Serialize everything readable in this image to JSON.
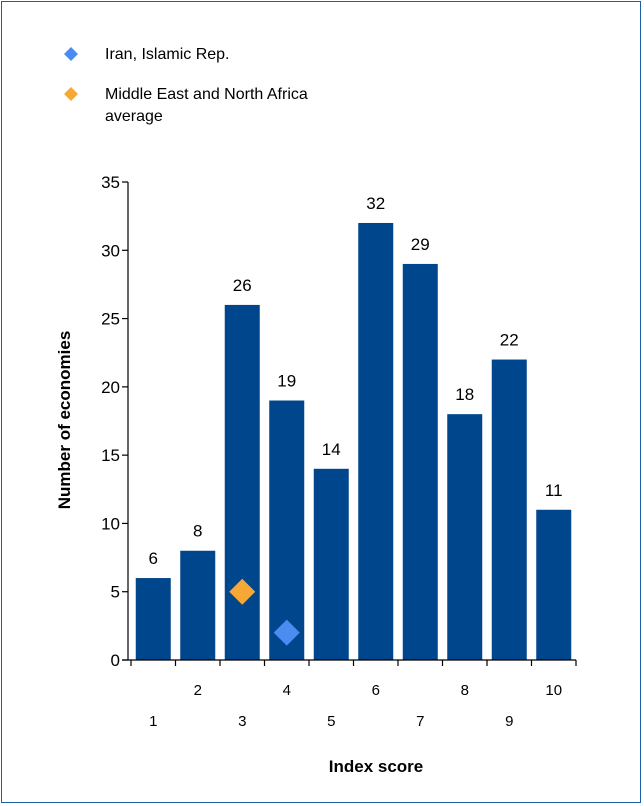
{
  "chart_data": {
    "type": "bar",
    "categories": [
      1,
      2,
      3,
      4,
      5,
      6,
      7,
      8,
      9,
      10
    ],
    "values": [
      6,
      8,
      26,
      19,
      14,
      32,
      29,
      18,
      22,
      11
    ],
    "bar_color": "#00468c",
    "xlabel": "Index score",
    "ylabel": "Number of economies",
    "ylim": [
      0,
      35
    ],
    "yticks": [
      0,
      5,
      10,
      15,
      20,
      25,
      30,
      35
    ],
    "grid": false,
    "legend_position": "top-left",
    "markers": [
      {
        "name": "Iran, Islamic Rep.",
        "x": 4,
        "y": 2,
        "color": "#4b8cf0",
        "shape": "diamond"
      },
      {
        "name": "Middle East and North Africa average",
        "x": 3,
        "y": 5,
        "color": "#f7a733",
        "shape": "diamond"
      }
    ],
    "legend": [
      {
        "lines": [
          "Iran, Islamic Rep."
        ],
        "color": "#4b8cf0"
      },
      {
        "lines": [
          "Middle East and North Africa",
          "average"
        ],
        "color": "#f7a733"
      }
    ]
  }
}
